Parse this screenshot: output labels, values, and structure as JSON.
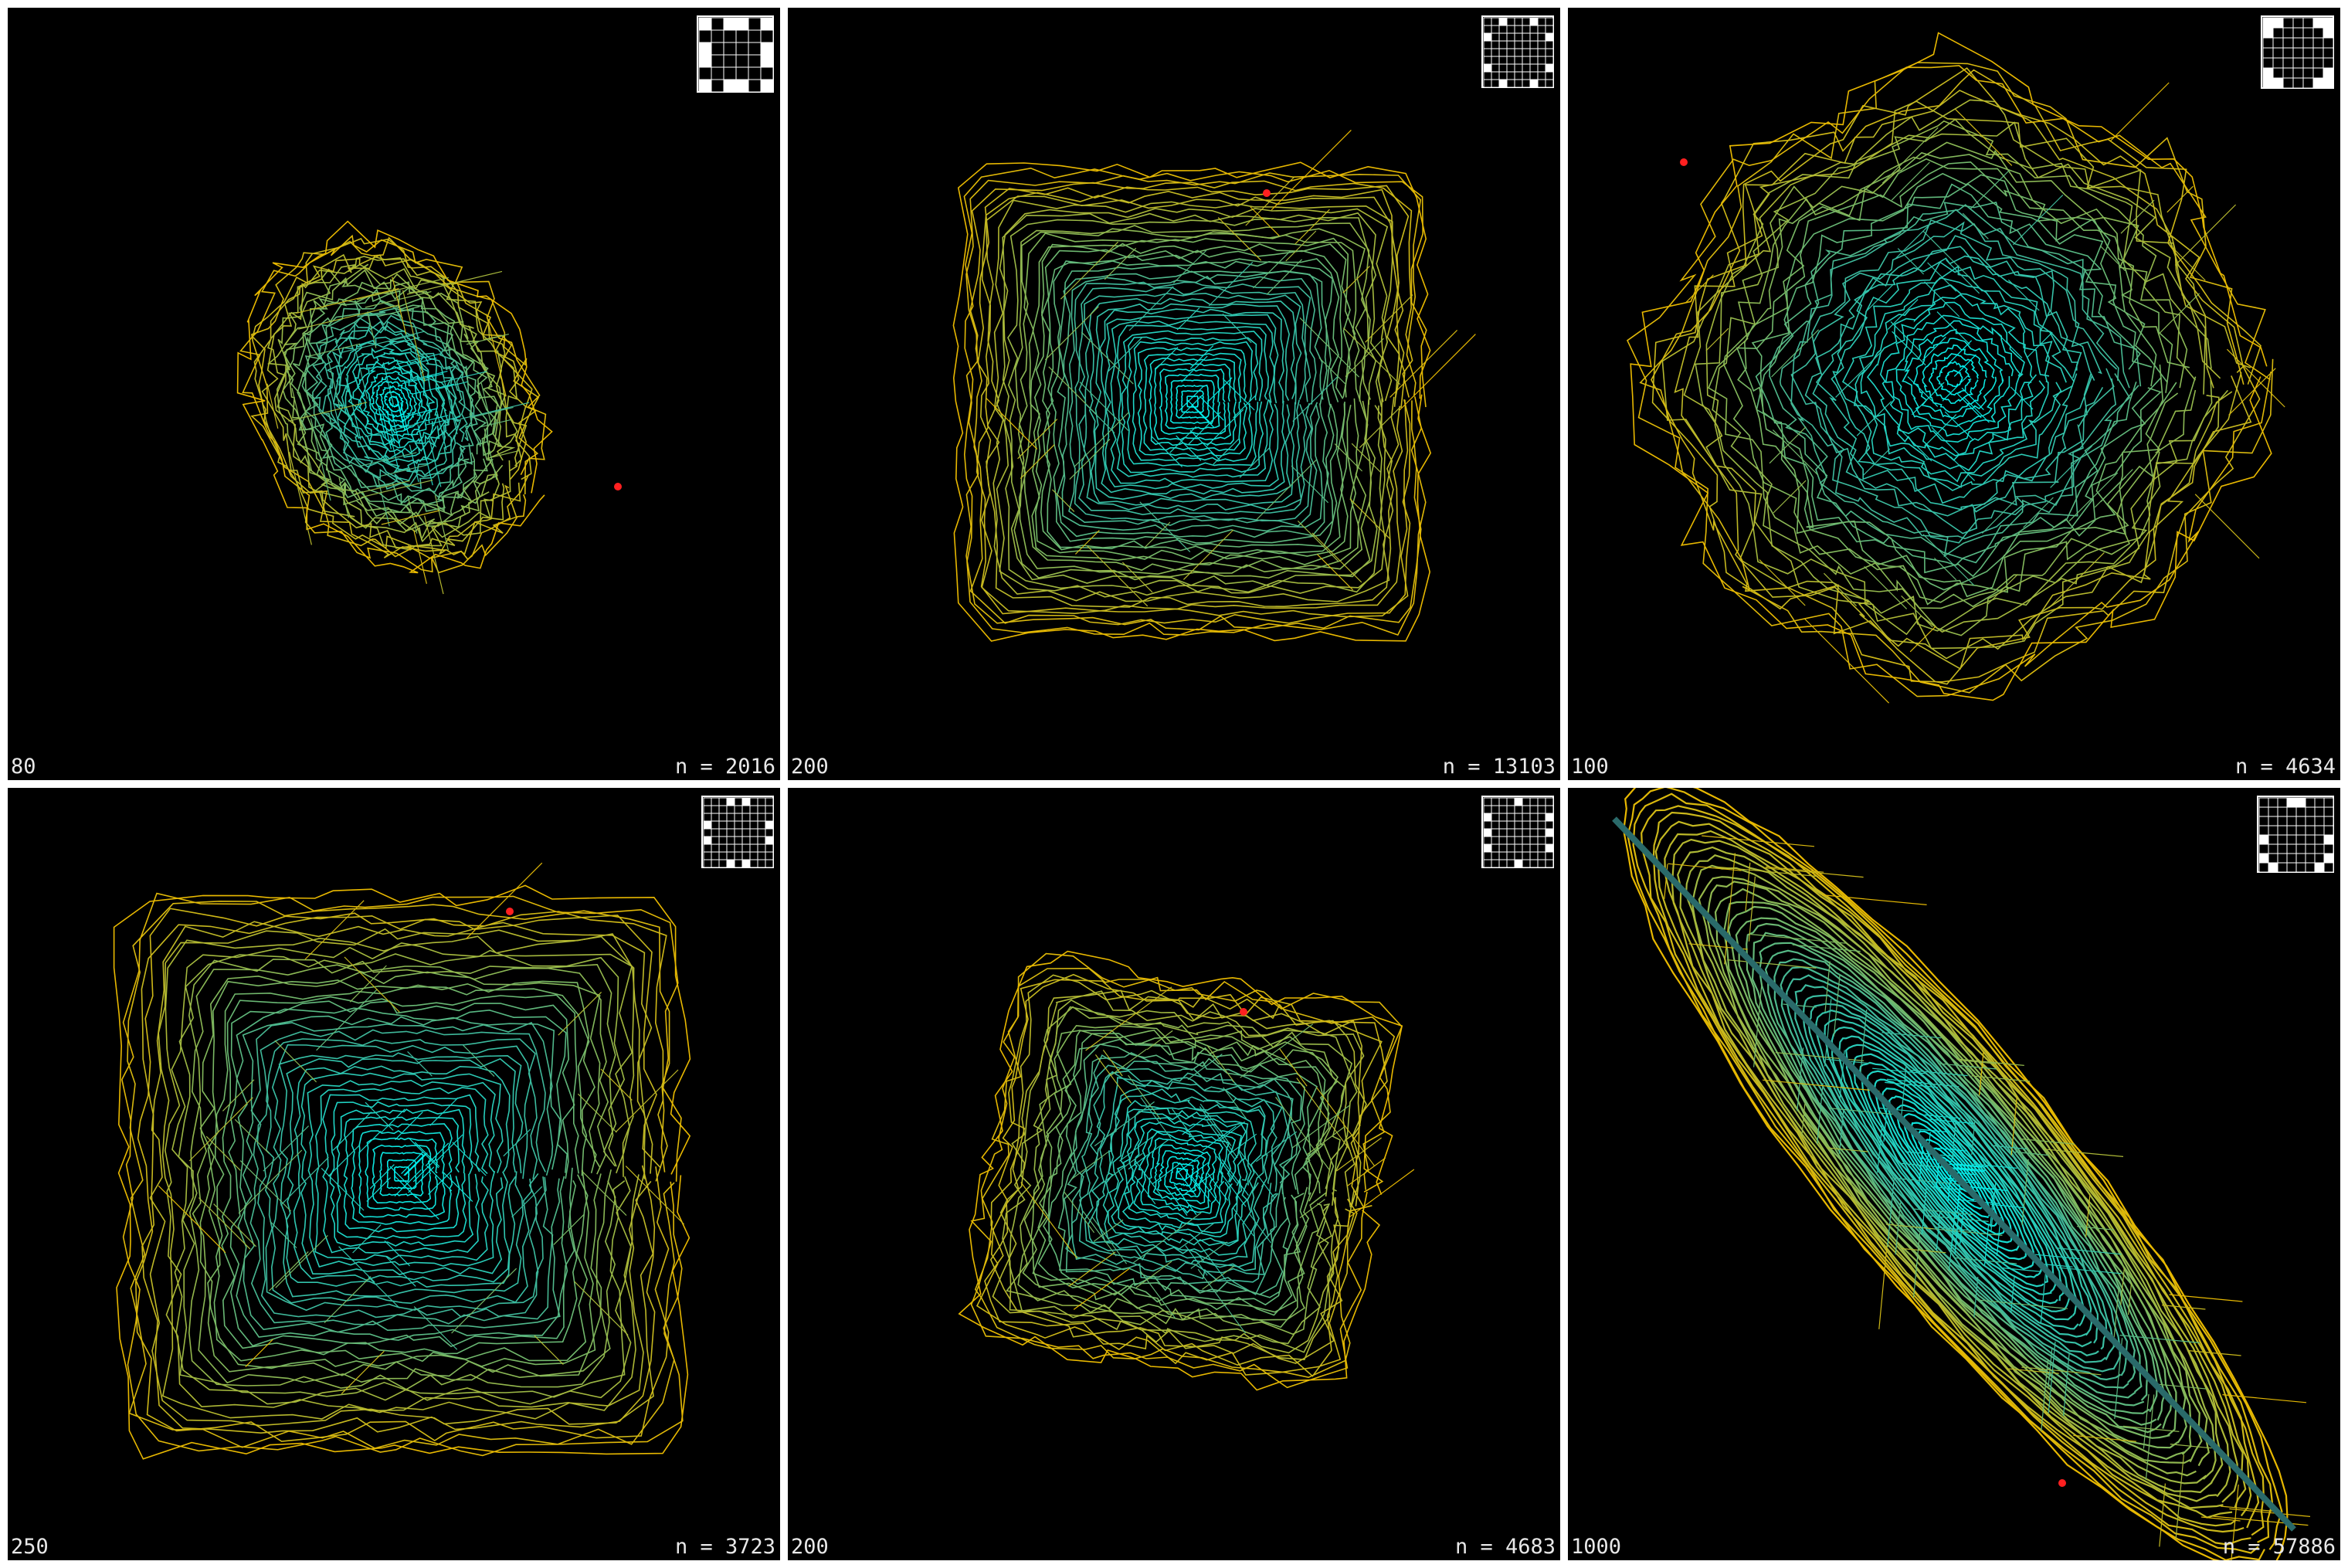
{
  "panels": [
    {
      "scale": "80",
      "count_text": "n = 2016",
      "grid": {
        "size": 6,
        "white": [
          [
            0,
            0
          ],
          [
            0,
            2
          ],
          [
            0,
            3
          ],
          [
            0,
            5
          ],
          [
            2,
            0
          ],
          [
            2,
            5
          ],
          [
            3,
            0
          ],
          [
            3,
            5
          ],
          [
            5,
            0
          ],
          [
            5,
            2
          ],
          [
            5,
            3
          ],
          [
            5,
            5
          ]
        ]
      }
    },
    {
      "scale": "200",
      "count_text": "n = 13103",
      "grid": {
        "size": 9,
        "white": [
          [
            0,
            2
          ],
          [
            0,
            6
          ],
          [
            2,
            0
          ],
          [
            2,
            8
          ],
          [
            6,
            0
          ],
          [
            6,
            8
          ],
          [
            8,
            2
          ],
          [
            8,
            6
          ]
        ]
      }
    },
    {
      "scale": "100",
      "count_text": "n = 4634",
      "grid": {
        "size": 7,
        "white": [
          [
            0,
            0
          ],
          [
            0,
            1
          ],
          [
            0,
            5
          ],
          [
            0,
            6
          ],
          [
            1,
            0
          ],
          [
            1,
            6
          ],
          [
            5,
            0
          ],
          [
            5,
            6
          ],
          [
            6,
            0
          ],
          [
            6,
            1
          ],
          [
            6,
            5
          ],
          [
            6,
            6
          ]
        ]
      }
    },
    {
      "scale": "250",
      "count_text": "n = 3723",
      "grid": {
        "size": 9,
        "white": [
          [
            0,
            3
          ],
          [
            0,
            5
          ],
          [
            3,
            0
          ],
          [
            5,
            0
          ],
          [
            3,
            8
          ],
          [
            5,
            8
          ],
          [
            8,
            3
          ],
          [
            8,
            5
          ]
        ]
      }
    },
    {
      "scale": "200",
      "count_text": "n = 4683",
      "grid": {
        "size": 9,
        "white": [
          [
            0,
            4
          ],
          [
            4,
            0
          ],
          [
            4,
            8
          ],
          [
            8,
            4
          ],
          [
            2,
            0
          ],
          [
            2,
            8
          ],
          [
            6,
            0
          ],
          [
            6,
            8
          ]
        ]
      }
    },
    {
      "scale": "1000",
      "count_text": "n = 57886",
      "grid": {
        "size": 8,
        "white": [
          [
            0,
            3
          ],
          [
            0,
            4
          ],
          [
            4,
            0
          ],
          [
            4,
            7
          ],
          [
            7,
            1
          ],
          [
            7,
            6
          ],
          [
            6,
            0
          ],
          [
            6,
            7
          ]
        ]
      }
    }
  ],
  "colors": {
    "center": "#00f0f0",
    "mid": "#3fb89a",
    "edge": "#e8b800",
    "marker": "#ff2020"
  }
}
